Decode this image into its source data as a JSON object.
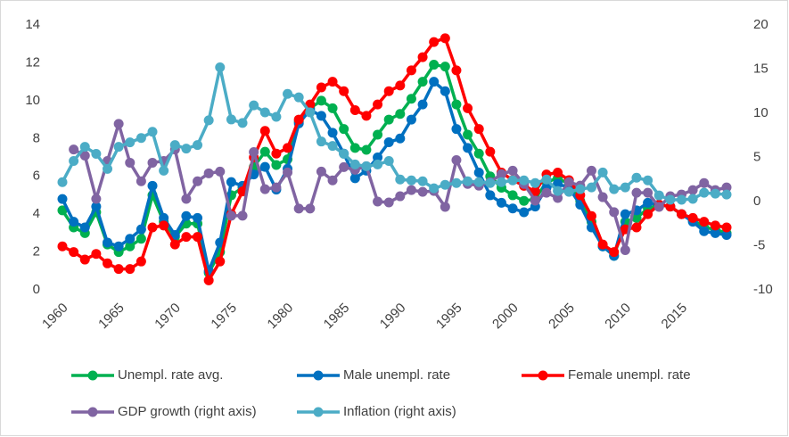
{
  "chart_data": {
    "type": "line",
    "x": [
      1960,
      1961,
      1962,
      1963,
      1964,
      1965,
      1966,
      1967,
      1968,
      1969,
      1970,
      1971,
      1972,
      1973,
      1974,
      1975,
      1976,
      1977,
      1978,
      1979,
      1980,
      1981,
      1982,
      1983,
      1984,
      1985,
      1986,
      1987,
      1988,
      1989,
      1990,
      1991,
      1992,
      1993,
      1994,
      1995,
      1996,
      1997,
      1998,
      1999,
      2000,
      2001,
      2002,
      2003,
      2004,
      2005,
      2006,
      2007,
      2008,
      2009,
      2010,
      2011,
      2012,
      2013,
      2014,
      2015,
      2016,
      2017,
      2018,
      2019
    ],
    "xlim": [
      1960,
      2019
    ],
    "xticks": [
      1960,
      1965,
      1970,
      1975,
      1980,
      1985,
      1990,
      1995,
      2000,
      2005,
      2010,
      2015
    ],
    "ylim": [
      0,
      14
    ],
    "yticks": [
      0,
      2,
      4,
      6,
      8,
      10,
      12,
      14
    ],
    "y2lim": [
      -10,
      20
    ],
    "y2ticks": [
      -10,
      -5,
      0,
      5,
      10,
      15,
      20
    ],
    "grid": false,
    "series": [
      {
        "name": "Unempl. rate avg.",
        "color": "#00b050",
        "values": [
          4.2,
          3.3,
          3.0,
          4.1,
          2.4,
          2.0,
          2.3,
          2.7,
          5.0,
          3.6,
          2.8,
          3.5,
          3.5,
          0.9,
          2.0,
          5.0,
          5.4,
          6.5,
          7.3,
          6.6,
          6.9,
          8.9,
          9.6,
          10.0,
          9.6,
          8.5,
          7.5,
          7.4,
          8.2,
          9.0,
          9.3,
          10.1,
          11.0,
          11.9,
          11.8,
          9.8,
          8.2,
          7.2,
          6.0,
          5.4,
          5.0,
          4.7,
          4.8,
          5.7,
          5.9,
          5.6,
          4.7,
          3.6,
          2.3,
          1.8,
          3.6,
          3.8,
          4.3,
          4.5,
          4.4,
          4.0,
          3.7,
          3.3,
          3.2,
          3.0
        ]
      },
      {
        "name": "Male unempl. rate",
        "color": "#0070c0",
        "values": [
          4.8,
          3.6,
          3.3,
          4.4,
          2.5,
          2.3,
          2.7,
          3.2,
          5.5,
          3.8,
          2.9,
          3.9,
          3.8,
          1.0,
          2.5,
          5.7,
          5.5,
          6.1,
          6.5,
          5.3,
          6.4,
          8.8,
          9.5,
          9.2,
          8.3,
          7.2,
          5.9,
          6.3,
          7.0,
          7.8,
          8.0,
          9.0,
          9.8,
          11.0,
          10.5,
          8.5,
          7.5,
          6.2,
          5.0,
          4.6,
          4.3,
          4.1,
          4.4,
          5.4,
          5.6,
          5.4,
          4.5,
          3.3,
          2.3,
          1.8,
          4.0,
          4.2,
          4.6,
          4.5,
          4.4,
          4.0,
          3.6,
          3.1,
          3.0,
          2.9
        ]
      },
      {
        "name": "Female unempl. rate",
        "color": "#ff0000",
        "values": [
          2.3,
          2.0,
          1.6,
          1.9,
          1.4,
          1.1,
          1.1,
          1.5,
          3.3,
          3.4,
          2.4,
          2.8,
          2.8,
          0.5,
          1.5,
          4.0,
          5.2,
          7.0,
          8.4,
          7.2,
          7.5,
          9.0,
          9.8,
          10.7,
          11.0,
          10.5,
          9.5,
          9.2,
          9.8,
          10.5,
          10.8,
          11.6,
          12.3,
          13.1,
          13.3,
          11.6,
          9.6,
          8.5,
          7.3,
          6.2,
          5.8,
          5.5,
          5.2,
          6.1,
          6.2,
          5.8,
          5.0,
          3.9,
          2.4,
          2.0,
          3.2,
          3.3,
          4.0,
          4.5,
          4.4,
          4.0,
          3.8,
          3.6,
          3.4,
          3.3
        ]
      },
      {
        "name": "GDP growth (right axis)",
        "color": "#8064a2",
        "axis": "y2",
        "values": [
          null,
          5.9,
          5.2,
          0.3,
          4.6,
          8.8,
          4.4,
          2.3,
          4.4,
          4.6,
          5.9,
          0.3,
          2.3,
          3.2,
          3.4,
          -1.6,
          -1.6,
          5.6,
          1.4,
          1.6,
          3.3,
          -0.8,
          -0.8,
          3.4,
          2.4,
          3.9,
          3.6,
          4.0,
          0.0,
          -0.1,
          0.6,
          1.3,
          1.1,
          1.2,
          -0.6,
          4.7,
          2.0,
          1.8,
          2.2,
          3.1,
          3.5,
          2.0,
          0.1,
          1.0,
          0.4,
          2.2,
          1.8,
          3.5,
          0.5,
          -1.2,
          -5.5,
          1.0,
          1.0,
          -0.6,
          0.6,
          0.8,
          1.3,
          2.1,
          1.3,
          1.6
        ]
      },
      {
        "name": "Inflation (right axis)",
        "color": "#4bacc6",
        "axis": "y2",
        "values": [
          2.2,
          4.6,
          6.2,
          5.4,
          3.7,
          6.2,
          6.7,
          7.2,
          7.9,
          3.5,
          6.4,
          6.0,
          6.4,
          9.2,
          15.2,
          9.3,
          8.9,
          10.9,
          10.1,
          9.6,
          12.2,
          11.8,
          10.1,
          6.8,
          6.3,
          5.4,
          4.2,
          4.0,
          4.2,
          4.6,
          2.5,
          2.4,
          2.3,
          1.5,
          1.9,
          2.1,
          2.3,
          2.2,
          2.1,
          2.2,
          2.4,
          2.4,
          2.1,
          2.5,
          1.2,
          1.1,
          1.4,
          1.6,
          3.3,
          1.4,
          1.6,
          2.7,
          2.4,
          0.7,
          0.2,
          0.2,
          0.3,
          1.0,
          0.9,
          0.8
        ]
      }
    ]
  }
}
